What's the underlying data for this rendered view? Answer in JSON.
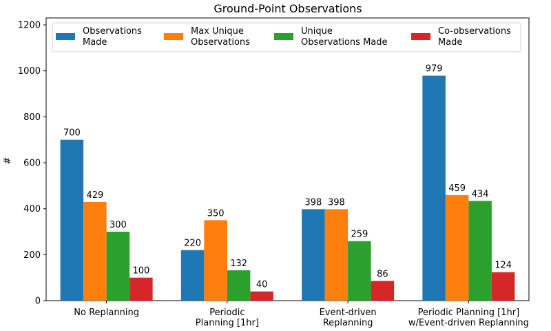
{
  "chart_data": {
    "type": "bar",
    "title": "Ground-Point Observations",
    "xlabel": "",
    "ylabel": "#",
    "ylim": [
      0,
      1230
    ],
    "yticks": [
      0,
      200,
      400,
      600,
      800,
      1000,
      1200
    ],
    "categories": [
      [
        "No Replanning"
      ],
      [
        "Periodic",
        "Planning [1hr]"
      ],
      [
        "Event-driven",
        "Replanning"
      ],
      [
        "Periodic Planning [1hr]",
        "w/Event-driven Replanning"
      ]
    ],
    "series": [
      {
        "name": [
          "Observations",
          "Made"
        ],
        "color": "#1f77b4",
        "values": [
          700,
          220,
          398,
          979
        ]
      },
      {
        "name": [
          "Max Unique",
          "Observations"
        ],
        "color": "#ff7f0e",
        "values": [
          429,
          350,
          398,
          459
        ]
      },
      {
        "name": [
          "Unique",
          "Observations Made"
        ],
        "color": "#2ca02c",
        "values": [
          300,
          132,
          259,
          434
        ]
      },
      {
        "name": [
          "Co-observations",
          "Made"
        ],
        "color": "#d62728",
        "values": [
          100,
          40,
          86,
          124
        ]
      }
    ],
    "legend": "top",
    "grid": false
  }
}
